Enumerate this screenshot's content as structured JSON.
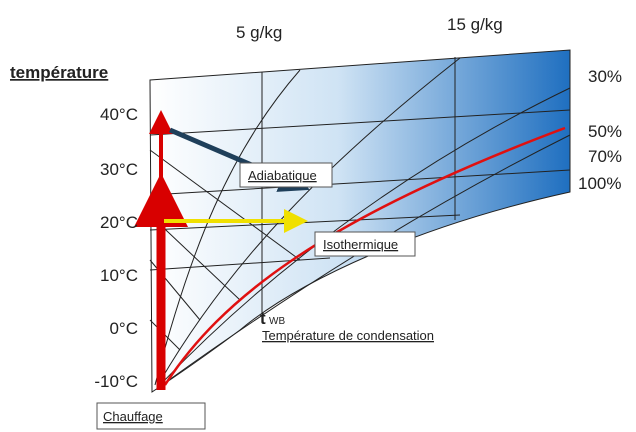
{
  "axis_title": "température",
  "temperature_labels": [
    "40°C",
    "30°C",
    "20°C",
    "10°C",
    "0°C",
    "-10°C"
  ],
  "humidity_labels": [
    "5 g/kg",
    "15 g/kg"
  ],
  "relative_humidity_labels": [
    "30%",
    "50%",
    "70%",
    "100%"
  ],
  "annotations": {
    "adiabatic": "Adiabatique",
    "isothermal": "Isothermique",
    "twb_t": "t",
    "twb_sub": "WB",
    "condensation": "Température de condensation",
    "heating": "Chauffage"
  }
}
